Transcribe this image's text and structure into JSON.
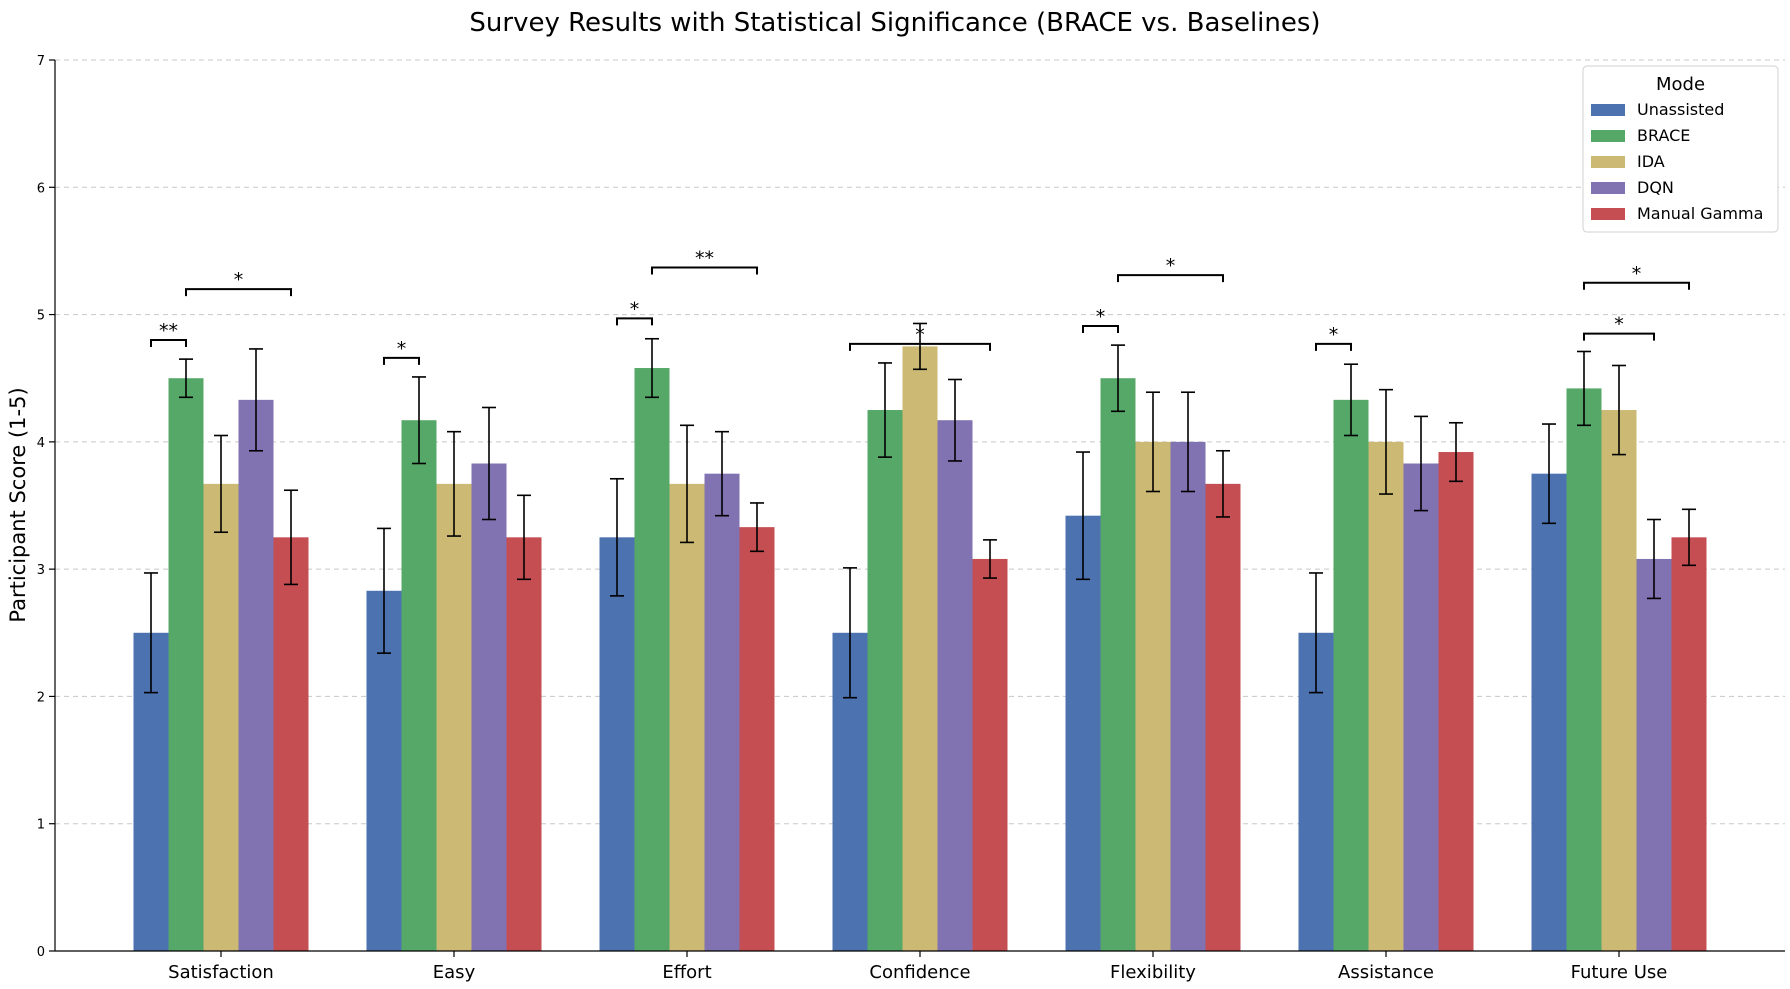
{
  "chart_data": {
    "type": "bar",
    "title": "Survey Results with Statistical Significance (BRACE vs. Baselines)",
    "xlabel": "",
    "ylabel": "Participant Score (1-5)",
    "ylim": [
      0,
      7
    ],
    "yticks": [
      0,
      1,
      2,
      3,
      4,
      5,
      6,
      7
    ],
    "grid": "y, dashed",
    "legend": {
      "title": "Mode",
      "placement": "top-right"
    },
    "categories": [
      "Satisfaction",
      "Easy",
      "Effort",
      "Confidence",
      "Flexibility",
      "Assistance",
      "Future Use"
    ],
    "series": [
      {
        "name": "Unassisted",
        "color": "#4c72b0",
        "values": [
          2.5,
          2.83,
          3.25,
          2.5,
          3.42,
          2.5,
          3.75
        ],
        "errors": [
          0.47,
          0.49,
          0.46,
          0.51,
          0.5,
          0.47,
          0.39
        ]
      },
      {
        "name": "BRACE",
        "color": "#55a868",
        "values": [
          4.5,
          4.17,
          4.58,
          4.25,
          4.5,
          4.33,
          4.42
        ],
        "errors": [
          0.15,
          0.34,
          0.23,
          0.37,
          0.26,
          0.28,
          0.29
        ]
      },
      {
        "name": "IDA",
        "color": "#ccb974",
        "values": [
          3.67,
          3.67,
          3.67,
          4.75,
          4.0,
          4.0,
          4.25
        ],
        "errors": [
          0.38,
          0.41,
          0.46,
          0.18,
          0.39,
          0.41,
          0.35
        ]
      },
      {
        "name": "DQN",
        "color": "#8172b2",
        "values": [
          4.33,
          3.83,
          3.75,
          4.17,
          4.0,
          3.83,
          3.08
        ],
        "errors": [
          0.4,
          0.44,
          0.33,
          0.32,
          0.39,
          0.37,
          0.31
        ]
      },
      {
        "name": "Manual Gamma",
        "color": "#c44e52",
        "values": [
          3.25,
          3.25,
          3.33,
          3.08,
          3.67,
          3.92,
          3.25
        ],
        "errors": [
          0.37,
          0.33,
          0.19,
          0.15,
          0.26,
          0.23,
          0.22
        ]
      }
    ],
    "significance": [
      {
        "category": "Satisfaction",
        "from": "Unassisted",
        "to": "BRACE",
        "y": 4.8,
        "label": "**"
      },
      {
        "category": "Satisfaction",
        "from": "BRACE",
        "to": "Manual Gamma",
        "y": 5.2,
        "label": "*"
      },
      {
        "category": "Easy",
        "from": "Unassisted",
        "to": "BRACE",
        "y": 4.66,
        "label": "*"
      },
      {
        "category": "Effort",
        "from": "Unassisted",
        "to": "BRACE",
        "y": 4.97,
        "label": "*"
      },
      {
        "category": "Effort",
        "from": "BRACE",
        "to": "Manual Gamma",
        "y": 5.37,
        "label": "**"
      },
      {
        "category": "Confidence",
        "from": "Unassisted",
        "to": "Manual Gamma",
        "y": 4.77,
        "label": "*"
      },
      {
        "category": "Flexibility",
        "from": "Unassisted",
        "to": "BRACE",
        "y": 4.91,
        "label": "*"
      },
      {
        "category": "Flexibility",
        "from": "BRACE",
        "to": "Manual Gamma",
        "y": 5.31,
        "label": "*"
      },
      {
        "category": "Assistance",
        "from": "Unassisted",
        "to": "BRACE",
        "y": 4.77,
        "label": "*"
      },
      {
        "category": "Future Use",
        "from": "BRACE",
        "to": "DQN",
        "y": 4.85,
        "label": "*"
      },
      {
        "category": "Future Use",
        "from": "BRACE",
        "to": "Manual Gamma",
        "y": 5.25,
        "label": "*"
      }
    ]
  }
}
